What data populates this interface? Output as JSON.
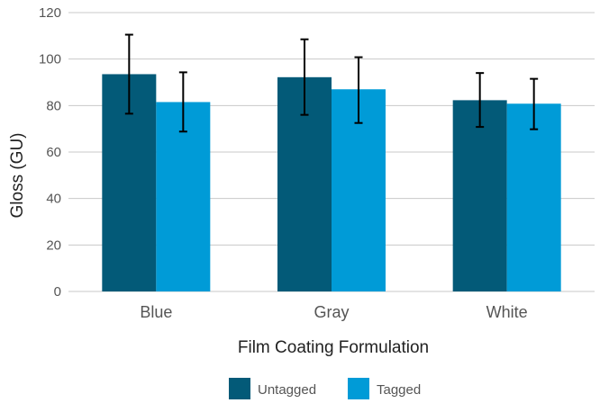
{
  "chart_data": {
    "type": "bar",
    "title": "",
    "xlabel": "Film Coating Formulation",
    "ylabel": "Gloss (GU)",
    "ylim": [
      0,
      120
    ],
    "yticks": [
      0,
      20,
      40,
      60,
      80,
      100,
      120
    ],
    "grid": true,
    "legend_position": "bottom",
    "categories": [
      "Blue",
      "Gray",
      "White"
    ],
    "series": [
      {
        "name": "Untagged",
        "color": "#035a78",
        "values": [
          93.5,
          92.2,
          82.3
        ],
        "error_low": [
          76.5,
          76.0,
          70.8
        ],
        "error_high": [
          110.5,
          108.5,
          94.0
        ]
      },
      {
        "name": "Tagged",
        "color": "#009bd7",
        "values": [
          81.5,
          87.0,
          80.8
        ],
        "error_low": [
          68.8,
          72.5,
          69.8
        ],
        "error_high": [
          94.3,
          100.8,
          91.5
        ]
      }
    ]
  }
}
